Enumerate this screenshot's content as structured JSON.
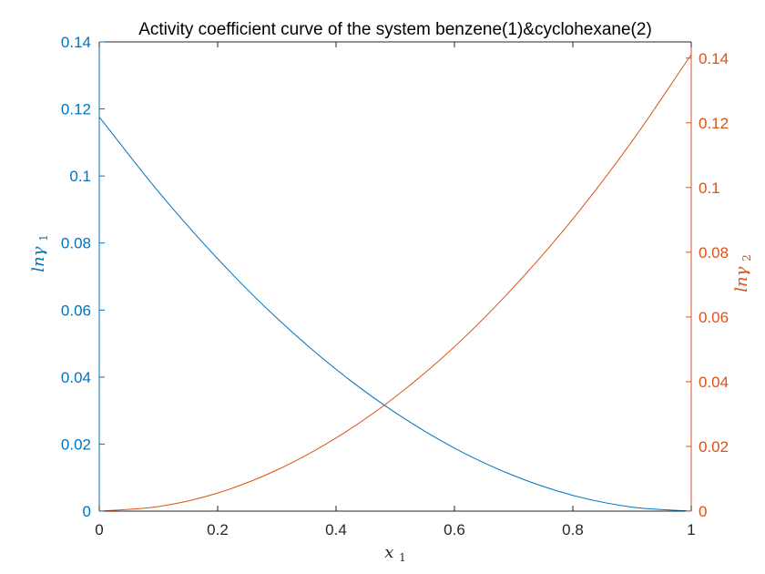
{
  "chart_data": {
    "type": "line",
    "title": "Activity coefficient curve of the system benzene(1)&cyclohexane(2)",
    "xlabel": {
      "base": "x",
      "sub": "1"
    },
    "ylabel_left": {
      "base": "lnγ",
      "sub": "1"
    },
    "ylabel_right": {
      "base": "lnγ",
      "sub": "2"
    },
    "xlim": [
      0,
      1
    ],
    "ylim_left": [
      0,
      0.14
    ],
    "ylim_right": [
      0,
      0.145
    ],
    "x_ticks": [
      "0",
      "0.2",
      "0.4",
      "0.6",
      "0.8",
      "1"
    ],
    "x_tick_values": [
      0,
      0.2,
      0.4,
      0.6,
      0.8,
      1
    ],
    "y_left_ticks": [
      "0",
      "0.02",
      "0.04",
      "0.06",
      "0.08",
      "0.1",
      "0.12",
      "0.14"
    ],
    "y_left_tick_values": [
      0,
      0.02,
      0.04,
      0.06,
      0.08,
      0.1,
      0.12,
      0.14
    ],
    "y_right_ticks": [
      "0",
      "0.02",
      "0.04",
      "0.06",
      "0.08",
      "0.1",
      "0.12",
      "0.14"
    ],
    "y_right_tick_values": [
      0,
      0.02,
      0.04,
      0.06,
      0.08,
      0.1,
      0.12,
      0.14
    ],
    "grid": false,
    "colors": {
      "left": "#0072BD",
      "right": "#D95319",
      "axes": "#262626"
    },
    "x": [
      0,
      0.1,
      0.2,
      0.3,
      0.4,
      0.5,
      0.6,
      0.7,
      0.8,
      0.9,
      1.0
    ],
    "series": [
      {
        "axis": "left",
        "values": [
          0.1176,
          0.0953,
          0.0753,
          0.0576,
          0.0423,
          0.0294,
          0.0188,
          0.0106,
          0.0047,
          0.0012,
          0.0
        ]
      },
      {
        "axis": "right",
        "values": [
          0.0,
          0.0014,
          0.0056,
          0.0127,
          0.0226,
          0.0353,
          0.0508,
          0.0692,
          0.0903,
          0.1143,
          0.1411
        ]
      }
    ]
  }
}
